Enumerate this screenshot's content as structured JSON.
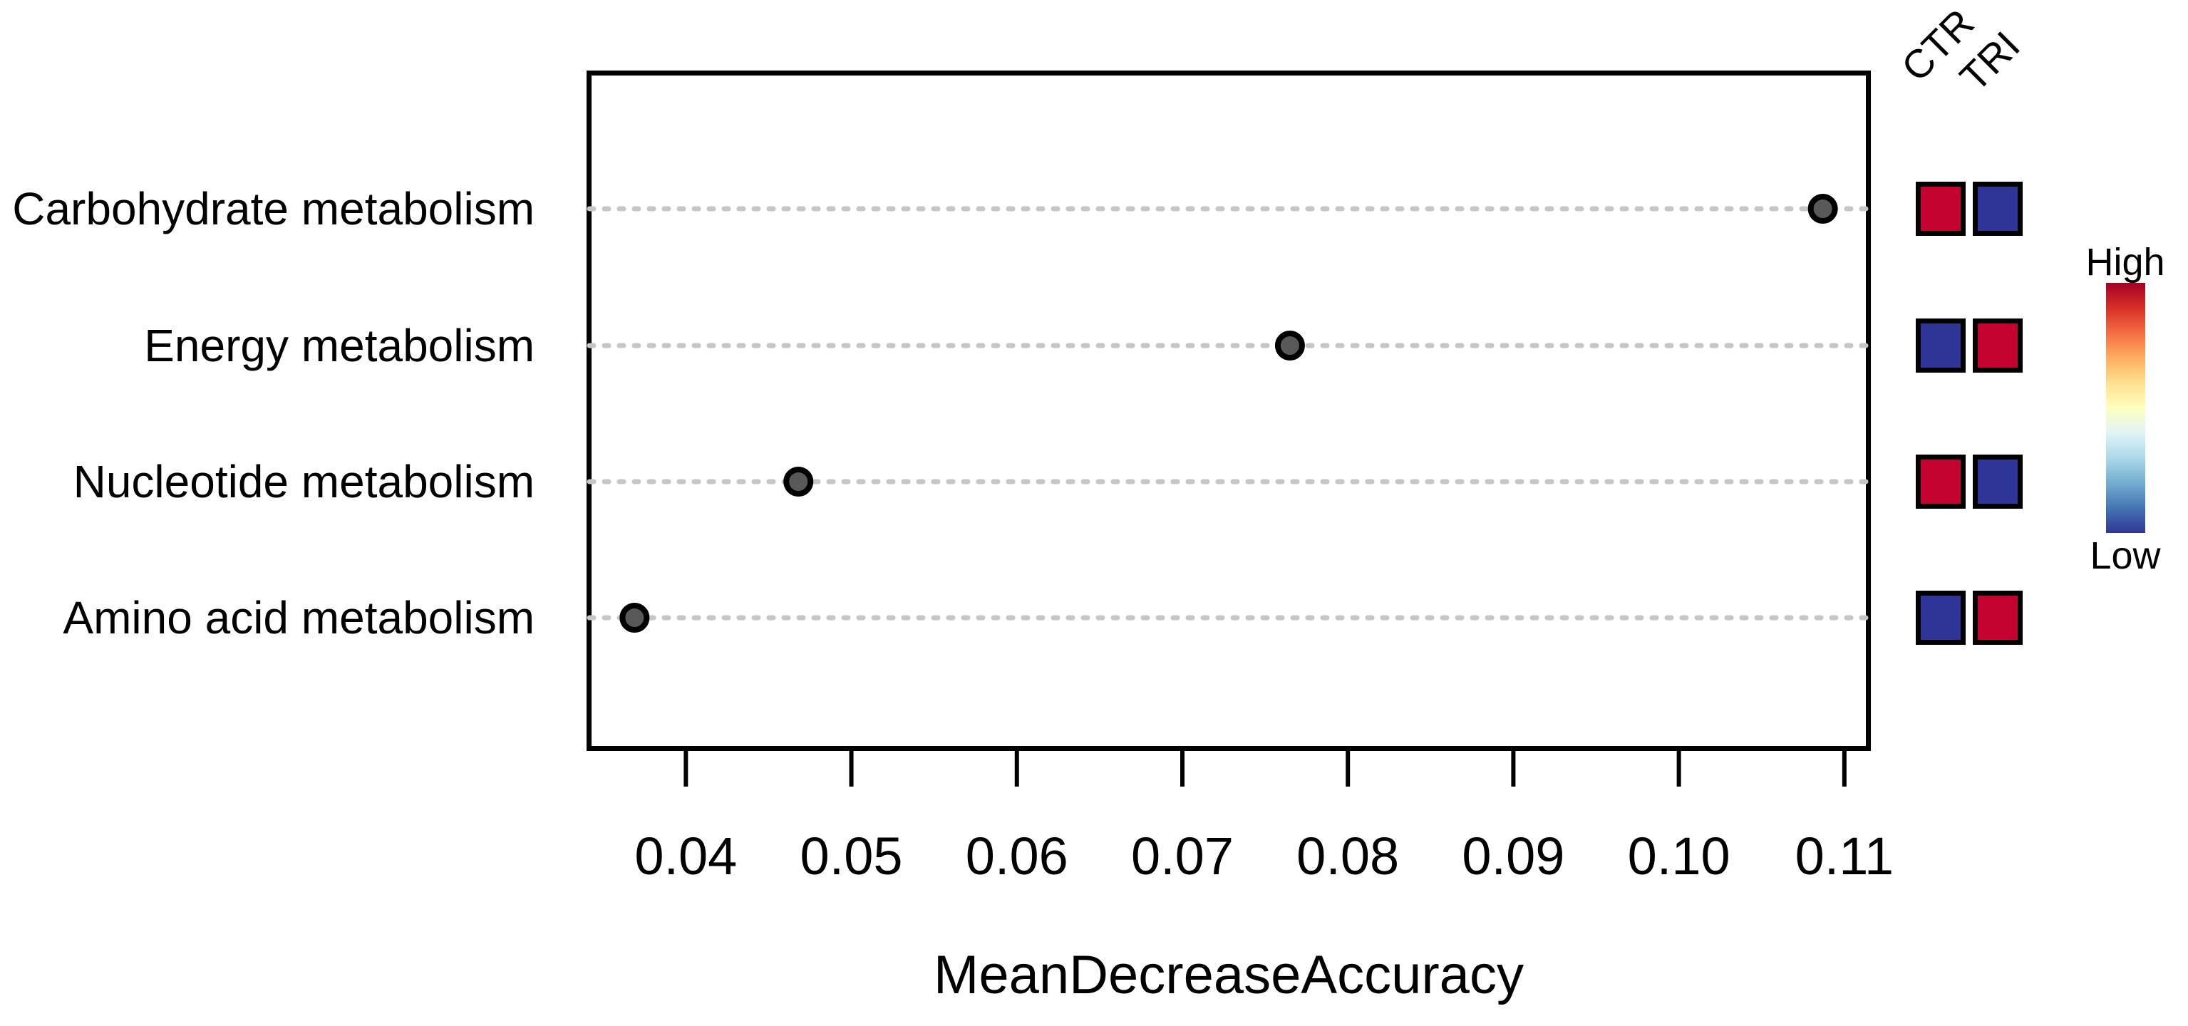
{
  "chart_data": {
    "type": "scatter",
    "subtype": "horizontal-dot-plot-with-heatmap-annotation",
    "title": "",
    "xlabel": "MeanDecreaseAccuracy",
    "ylabel": "",
    "categories": [
      "Carbohydrate metabolism",
      "Energy metabolism",
      "Nucleotide metabolism",
      "Amino acid metabolism"
    ],
    "values": [
      0.1087,
      0.0765,
      0.0468,
      0.0369
    ],
    "xlim": [
      0.034,
      0.1116
    ],
    "xticks": [
      0.04,
      0.05,
      0.06,
      0.07,
      0.08,
      0.09,
      0.1,
      0.11
    ],
    "xtick_labels": [
      "0.04",
      "0.05",
      "0.06",
      "0.07",
      "0.08",
      "0.09",
      "0.10",
      "0.11"
    ],
    "grid": "horizontal dotted gridlines",
    "heatmap": {
      "columns": [
        "CTR",
        "TRI"
      ],
      "cells": [
        [
          "high",
          "low"
        ],
        [
          "low",
          "high"
        ],
        [
          "high",
          "low"
        ],
        [
          "low",
          "high"
        ]
      ]
    },
    "colorbar": {
      "high_label": "High",
      "low_label": "Low",
      "colormap": "RdYlBu",
      "stops": [
        "#A50026",
        "#D73027",
        "#F46D43",
        "#FDAE61",
        "#FEE090",
        "#FFFFBF",
        "#E0F3F8",
        "#ABD9E9",
        "#74ADD1",
        "#4575B4",
        "#313695"
      ]
    }
  },
  "colors": {
    "background": "#FFFFFF",
    "axis": "#000000",
    "gridline": "#C6C6C6",
    "point_fill": "#595959",
    "point_stroke": "#000000",
    "heat_high": "#C40230",
    "heat_low": "#2F3597"
  }
}
